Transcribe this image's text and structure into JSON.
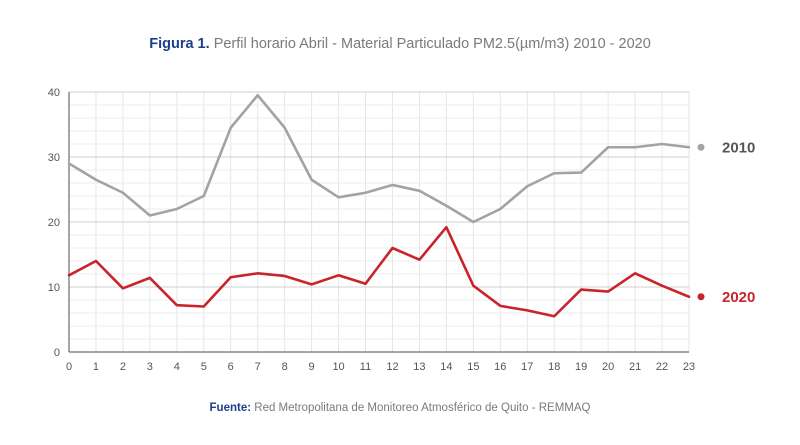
{
  "title": {
    "label": "Figura 1.",
    "text": "Perfil horario Abril - Material Particulado PM2.5(µm/m3) 2010 - 2020"
  },
  "source": {
    "label": "Fuente:",
    "text": "Red Metropolitana de Monitoreo Atmosférico de Quito - REMMAQ"
  },
  "chart_data": {
    "type": "line",
    "x": [
      0,
      1,
      2,
      3,
      4,
      5,
      6,
      7,
      8,
      9,
      10,
      11,
      12,
      13,
      14,
      15,
      16,
      17,
      18,
      19,
      20,
      21,
      22,
      23
    ],
    "xlim": [
      0,
      23
    ],
    "ylim": [
      0,
      40
    ],
    "yticks": [
      0,
      10,
      20,
      30,
      40
    ],
    "grid": true,
    "legend": "right",
    "series": [
      {
        "name": "2010",
        "color": "#a3a3a3",
        "values": [
          29,
          26.5,
          24.5,
          21,
          22,
          24,
          34.5,
          39.5,
          34.5,
          26.5,
          23.8,
          24.5,
          25.7,
          24.8,
          22.5,
          20,
          22,
          25.5,
          27.5,
          27.6,
          31.5,
          31.5,
          32,
          31.5
        ]
      },
      {
        "name": "2020",
        "color": "#c8242b",
        "values": [
          11.8,
          14,
          9.8,
          11.4,
          7.2,
          7,
          11.5,
          12.1,
          11.7,
          10.4,
          11.8,
          10.5,
          16,
          14.2,
          19.2,
          10.2,
          7.1,
          6.4,
          5.5,
          9.6,
          9.3,
          12.1,
          10.2,
          8.5
        ]
      }
    ]
  }
}
